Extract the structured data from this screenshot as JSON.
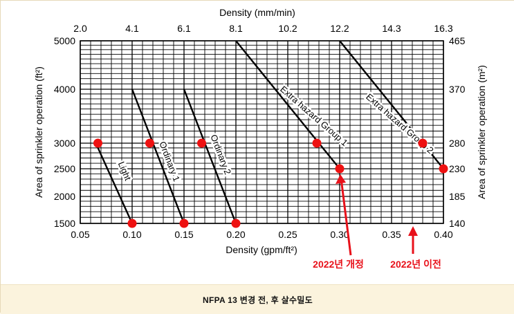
{
  "caption": "NFPA 13 변경 전, 후 살수밀도",
  "annotations": {
    "arrow_left_label": "2022년 개정",
    "arrow_right_label": "2022년 이전",
    "arrow_left_x": 0.3,
    "arrow_right_x": 0.37,
    "color": "#e8111a"
  },
  "chart_data": {
    "type": "line",
    "xlabel": "Density (gpm/ft²)",
    "top_xlabel": "Density (mm/min)",
    "ylabel": "Area of sprinkler operation (ft²)",
    "right_ylabel": "Area of sprinkler operation (m²)",
    "xlim": [
      0.05,
      0.4
    ],
    "ylim": [
      1500,
      5000
    ],
    "x_ticks": [
      0.05,
      0.1,
      0.15,
      0.2,
      0.25,
      0.3,
      0.35,
      0.4
    ],
    "x_tick_labels": [
      "0.05",
      "0.10",
      "0.15",
      "0.20",
      "0.25",
      "0.30",
      "0.35",
      "0.40"
    ],
    "top_ticks": [
      0.05,
      0.1,
      0.15,
      0.2,
      0.25,
      0.3,
      0.35,
      0.4
    ],
    "top_tick_labels": [
      "2.0",
      "4.1",
      "6.1",
      "8.1",
      "10.2",
      "12.2",
      "14.3",
      "16.3"
    ],
    "y_ticks": [
      1500,
      2000,
      2500,
      3000,
      4000,
      5000
    ],
    "y_tick_labels": [
      "1500",
      "2000",
      "2500",
      "3000",
      "4000",
      "5000"
    ],
    "right_ticks": [
      1500,
      2000,
      2500,
      3000,
      4000,
      5000
    ],
    "right_tick_labels": [
      "140",
      "185",
      "230",
      "280",
      "370",
      "465"
    ],
    "series": [
      {
        "name": "Light",
        "points": [
          [
            0.065,
            3000
          ],
          [
            0.1,
            1500
          ]
        ]
      },
      {
        "name": "Ordinary 1",
        "points": [
          [
            0.1,
            4000
          ],
          [
            0.15,
            1500
          ]
        ]
      },
      {
        "name": "Ordinary 2",
        "points": [
          [
            0.15,
            4000
          ],
          [
            0.2,
            1500
          ]
        ]
      },
      {
        "name": "Extra hazard Group 1",
        "points": [
          [
            0.2,
            5000
          ],
          [
            0.3,
            2500
          ]
        ]
      },
      {
        "name": "Extra hazard Group 2",
        "points": [
          [
            0.3,
            5000
          ],
          [
            0.4,
            2500
          ]
        ]
      }
    ],
    "markers": [
      {
        "x": 0.067,
        "y": 3000
      },
      {
        "x": 0.1,
        "y": 1500
      },
      {
        "x": 0.117,
        "y": 3000
      },
      {
        "x": 0.15,
        "y": 1500
      },
      {
        "x": 0.167,
        "y": 3000
      },
      {
        "x": 0.2,
        "y": 1500
      },
      {
        "x": 0.278,
        "y": 3000
      },
      {
        "x": 0.3,
        "y": 2500
      },
      {
        "x": 0.38,
        "y": 3000
      },
      {
        "x": 0.4,
        "y": 2500
      }
    ],
    "marker_color": "#ee1111"
  }
}
